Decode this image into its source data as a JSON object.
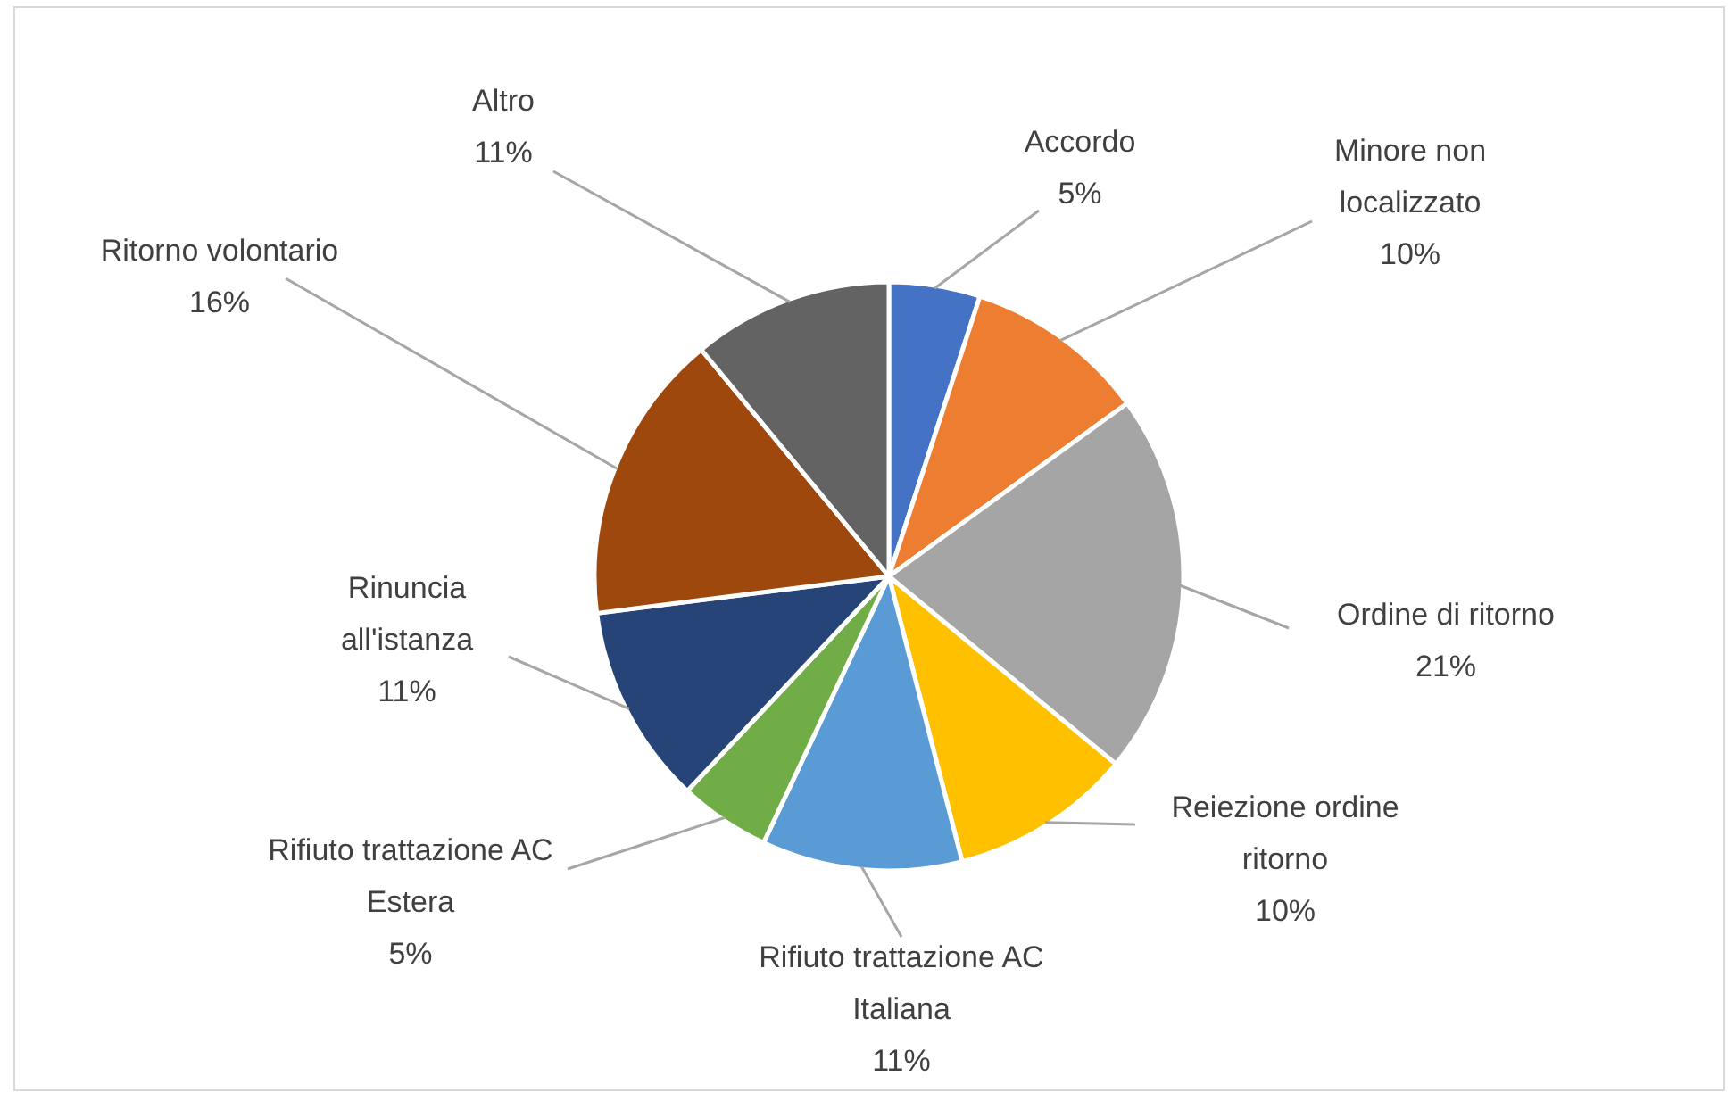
{
  "chart_data": {
    "type": "pie",
    "categories": [
      "Accordo",
      "Minore non localizzato",
      "Ordine di ritorno",
      "Reiezione ordine ritorno",
      "Rifiuto trattazione AC Italiana",
      "Rifiuto trattazione AC Estera",
      "Rinuncia all'istanza",
      "Ritorno volontario",
      "Altro"
    ],
    "values": [
      5,
      10,
      21,
      10,
      11,
      5,
      11,
      16,
      11
    ],
    "value_labels": [
      "5%",
      "10%",
      "21%",
      "10%",
      "11%",
      "5%",
      "11%",
      "16%",
      "11%"
    ],
    "colors": [
      "#4472c4",
      "#ed7d31",
      "#a5a5a5",
      "#ffc000",
      "#5b9bd5",
      "#70ad47",
      "#264478",
      "#9e480e",
      "#636363"
    ]
  }
}
